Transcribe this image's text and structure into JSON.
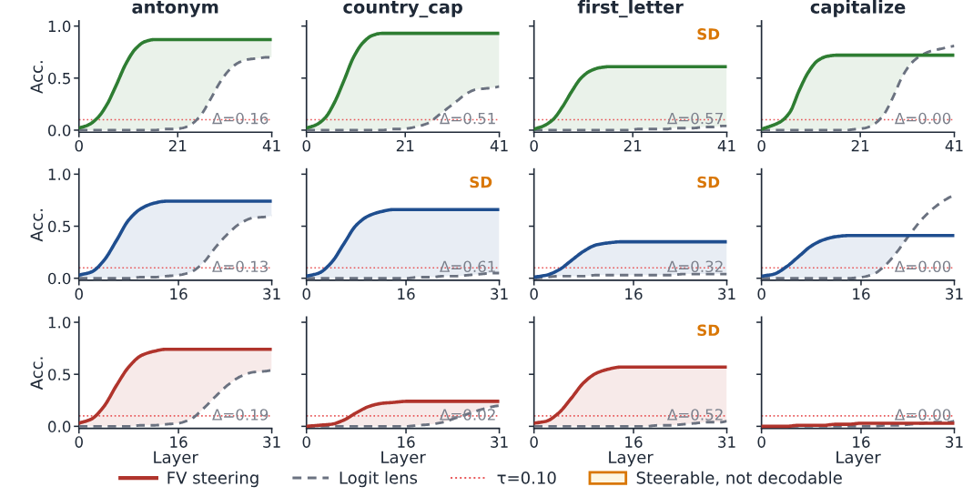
{
  "chart_data": [
    {
      "type": "line",
      "title": "antonym",
      "ylabel": "Acc.",
      "x": [
        0,
        2,
        4,
        6,
        8,
        10,
        12,
        14,
        16,
        18,
        20,
        22,
        24,
        26,
        28,
        30,
        32,
        34,
        36,
        38,
        40,
        41
      ],
      "series": [
        {
          "color": "#2e7d32",
          "line_style": "solid",
          "values": [
            0.02,
            0.05,
            0.12,
            0.25,
            0.44,
            0.64,
            0.78,
            0.85,
            0.87,
            0.87,
            0.87,
            0.87,
            0.87,
            0.87,
            0.87,
            0.87,
            0.87,
            0.87,
            0.87,
            0.87,
            0.87,
            0.87
          ],
          "lower": [
            0,
            0,
            0,
            0,
            0,
            0,
            0,
            0,
            0,
            0.01,
            0.01,
            0.02,
            0.06,
            0.15,
            0.3,
            0.46,
            0.58,
            0.65,
            0.68,
            0.69,
            0.7,
            0.7
          ],
          "upper": [
            0.02,
            0.05,
            0.12,
            0.25,
            0.44,
            0.64,
            0.78,
            0.85,
            0.87,
            0.87,
            0.87,
            0.87,
            0.87,
            0.87,
            0.87,
            0.87,
            0.87,
            0.87,
            0.87,
            0.87,
            0.87,
            0.87
          ]
        },
        {
          "color": "#6b7280",
          "line_style": "dashed",
          "values": [
            0,
            0,
            0,
            0,
            0,
            0,
            0,
            0,
            0,
            0.01,
            0.01,
            0.02,
            0.06,
            0.15,
            0.3,
            0.46,
            0.58,
            0.65,
            0.68,
            0.69,
            0.7,
            0.7
          ]
        }
      ],
      "xlim": [
        0,
        41
      ],
      "xticks": [
        0,
        21,
        41
      ],
      "ylim": [
        -0.02,
        1.05
      ],
      "yticks": [
        {
          "value": 0,
          "label": "0.0"
        },
        {
          "value": 0.5,
          "label": "0.5"
        },
        {
          "value": 1,
          "label": "1.0"
        }
      ],
      "ref_lines": [
        {
          "axis": "y",
          "value": 0.1,
          "color": "#e8585a",
          "line_style": "dotted"
        }
      ],
      "annotations": [
        "Δ=0.16"
      ]
    },
    {
      "type": "line",
      "title": "country_cap",
      "x": [
        0,
        2,
        4,
        6,
        8,
        10,
        12,
        14,
        16,
        18,
        20,
        22,
        24,
        26,
        28,
        30,
        32,
        34,
        36,
        38,
        40,
        41
      ],
      "series": [
        {
          "color": "#2e7d32",
          "line_style": "solid",
          "values": [
            0.02,
            0.05,
            0.12,
            0.27,
            0.48,
            0.7,
            0.84,
            0.91,
            0.93,
            0.93,
            0.93,
            0.93,
            0.93,
            0.93,
            0.93,
            0.93,
            0.93,
            0.93,
            0.93,
            0.93,
            0.93,
            0.93
          ],
          "lower": [
            0,
            0,
            0,
            0,
            0,
            0,
            0,
            0,
            0,
            0.01,
            0.01,
            0.02,
            0.04,
            0.07,
            0.14,
            0.21,
            0.28,
            0.35,
            0.39,
            0.4,
            0.41,
            0.42
          ],
          "upper": [
            0.02,
            0.05,
            0.12,
            0.27,
            0.48,
            0.7,
            0.84,
            0.91,
            0.93,
            0.93,
            0.93,
            0.93,
            0.93,
            0.93,
            0.93,
            0.93,
            0.93,
            0.93,
            0.93,
            0.93,
            0.93,
            0.93
          ]
        },
        {
          "color": "#6b7280",
          "line_style": "dashed",
          "values": [
            0,
            0,
            0,
            0,
            0,
            0,
            0,
            0,
            0,
            0.01,
            0.01,
            0.02,
            0.04,
            0.07,
            0.14,
            0.21,
            0.28,
            0.35,
            0.39,
            0.4,
            0.41,
            0.42
          ]
        }
      ],
      "xlim": [
        0,
        41
      ],
      "xticks": [
        0,
        21,
        41
      ],
      "ylim": [
        -0.02,
        1.05
      ],
      "yticks": [
        0,
        0.5,
        1
      ],
      "tick_labels": "x",
      "ref_lines": [
        {
          "axis": "y",
          "value": 0.1,
          "color": "#e8585a",
          "line_style": "dotted"
        }
      ],
      "annotations": [
        "Δ=0.51"
      ]
    },
    {
      "type": "line",
      "title": "first_letter",
      "x": [
        0,
        2,
        4,
        6,
        8,
        10,
        12,
        14,
        16,
        18,
        20,
        22,
        24,
        26,
        28,
        30,
        32,
        34,
        36,
        38,
        40,
        41
      ],
      "series": [
        {
          "color": "#2e7d32",
          "line_style": "solid",
          "values": [
            0.01,
            0.04,
            0.1,
            0.22,
            0.37,
            0.5,
            0.57,
            0.6,
            0.61,
            0.61,
            0.61,
            0.61,
            0.61,
            0.61,
            0.61,
            0.61,
            0.61,
            0.61,
            0.61,
            0.61,
            0.61,
            0.61
          ],
          "lower": [
            0,
            0,
            0,
            0,
            0,
            0,
            0,
            0,
            0,
            0,
            0,
            0.01,
            0.01,
            0.01,
            0.01,
            0.02,
            0.02,
            0.02,
            0.03,
            0.03,
            0.04,
            0.04
          ],
          "upper": [
            0.01,
            0.04,
            0.1,
            0.22,
            0.37,
            0.5,
            0.57,
            0.6,
            0.61,
            0.61,
            0.61,
            0.61,
            0.61,
            0.61,
            0.61,
            0.61,
            0.61,
            0.61,
            0.61,
            0.61,
            0.61,
            0.61
          ]
        },
        {
          "color": "#6b7280",
          "line_style": "dashed",
          "values": [
            0,
            0,
            0,
            0,
            0,
            0,
            0,
            0,
            0,
            0,
            0,
            0.01,
            0.01,
            0.01,
            0.01,
            0.02,
            0.02,
            0.02,
            0.03,
            0.03,
            0.04,
            0.04
          ]
        }
      ],
      "xlim": [
        0,
        41
      ],
      "xticks": [
        0,
        21,
        41
      ],
      "ylim": [
        -0.02,
        1.05
      ],
      "yticks": [
        0,
        0.5,
        1
      ],
      "tick_labels": "x",
      "ref_lines": [
        {
          "axis": "y",
          "value": 0.1,
          "color": "#e8585a",
          "line_style": "dotted"
        }
      ],
      "annotations": [
        "Δ=0.57",
        "SD"
      ]
    },
    {
      "type": "line",
      "title": "capitalize",
      "x": [
        0,
        2,
        4,
        6,
        8,
        10,
        12,
        14,
        16,
        18,
        20,
        22,
        24,
        26,
        28,
        30,
        32,
        34,
        36,
        38,
        40,
        41
      ],
      "series": [
        {
          "color": "#2e7d32",
          "line_style": "solid",
          "values": [
            0.01,
            0.04,
            0.08,
            0.17,
            0.38,
            0.56,
            0.67,
            0.71,
            0.72,
            0.72,
            0.72,
            0.72,
            0.72,
            0.72,
            0.72,
            0.72,
            0.72,
            0.72,
            0.72,
            0.72,
            0.72,
            0.72
          ],
          "lower": [
            0,
            0,
            0,
            0,
            0,
            0,
            0,
            0,
            0,
            0,
            0.01,
            0.02,
            0.06,
            0.15,
            0.32,
            0.52,
            0.65,
            0.72,
            null,
            null,
            null,
            null
          ],
          "upper": [
            0.01,
            0.04,
            0.08,
            0.17,
            0.38,
            0.56,
            0.67,
            0.71,
            0.72,
            0.72,
            0.72,
            0.72,
            0.72,
            0.72,
            0.72,
            0.72,
            0.72,
            0.72,
            null,
            null,
            null,
            null
          ]
        },
        {
          "color": "#6b7280",
          "line_style": "dashed",
          "values": [
            0,
            0,
            0,
            0,
            0,
            0,
            0,
            0,
            0,
            0,
            0.01,
            0.02,
            0.06,
            0.15,
            0.32,
            0.52,
            0.65,
            0.72,
            0.76,
            0.78,
            0.8,
            0.81
          ]
        }
      ],
      "xlim": [
        0,
        41
      ],
      "xticks": [
        0,
        21,
        41
      ],
      "ylim": [
        -0.02,
        1.05
      ],
      "yticks": [
        0,
        0.5,
        1
      ],
      "tick_labels": "x",
      "ref_lines": [
        {
          "axis": "y",
          "value": 0.1,
          "color": "#e8585a",
          "line_style": "dotted"
        }
      ],
      "annotations": [
        "Δ=0.00"
      ]
    },
    {
      "type": "line",
      "ylabel": "Acc.",
      "x": [
        0,
        2,
        4,
        6,
        8,
        10,
        12,
        14,
        16,
        18,
        20,
        22,
        24,
        26,
        28,
        30,
        31
      ],
      "series": [
        {
          "color": "#1f4e8f",
          "line_style": "solid",
          "values": [
            0.03,
            0.06,
            0.17,
            0.36,
            0.56,
            0.67,
            0.72,
            0.74,
            0.74,
            0.74,
            0.74,
            0.74,
            0.74,
            0.74,
            0.74,
            0.74,
            0.74
          ],
          "lower": [
            0,
            0,
            0,
            0,
            0,
            0.01,
            0.01,
            0.02,
            0.03,
            0.06,
            0.15,
            0.3,
            0.43,
            0.53,
            0.58,
            0.59,
            0.6
          ],
          "upper": [
            0.03,
            0.06,
            0.17,
            0.36,
            0.56,
            0.67,
            0.72,
            0.74,
            0.74,
            0.74,
            0.74,
            0.74,
            0.74,
            0.74,
            0.74,
            0.74,
            0.74
          ]
        },
        {
          "color": "#6b7280",
          "line_style": "dashed",
          "values": [
            0,
            0,
            0,
            0,
            0,
            0.01,
            0.01,
            0.02,
            0.03,
            0.06,
            0.15,
            0.3,
            0.43,
            0.53,
            0.58,
            0.59,
            0.6
          ]
        }
      ],
      "xlim": [
        0,
        31
      ],
      "xticks": [
        0,
        16,
        31
      ],
      "ylim": [
        -0.02,
        1.05
      ],
      "yticks": [
        {
          "value": 0,
          "label": "0.0"
        },
        {
          "value": 0.5,
          "label": "0.5"
        },
        {
          "value": 1,
          "label": "1.0"
        }
      ],
      "ref_lines": [
        {
          "axis": "y",
          "value": 0.1,
          "color": "#e8585a",
          "line_style": "dotted"
        }
      ],
      "annotations": [
        "Δ=0.13"
      ]
    },
    {
      "type": "line",
      "x": [
        0,
        2,
        4,
        6,
        8,
        10,
        12,
        14,
        16,
        18,
        20,
        22,
        24,
        26,
        28,
        30,
        31
      ],
      "series": [
        {
          "color": "#1f4e8f",
          "line_style": "solid",
          "values": [
            0.02,
            0.05,
            0.15,
            0.33,
            0.51,
            0.6,
            0.64,
            0.66,
            0.66,
            0.66,
            0.66,
            0.66,
            0.66,
            0.66,
            0.66,
            0.66,
            0.66
          ],
          "lower": [
            0,
            0,
            0,
            0,
            0,
            0,
            0,
            0,
            0,
            0.01,
            0.01,
            0.02,
            0.02,
            0.03,
            0.04,
            0.05,
            0.05
          ],
          "upper": [
            0.02,
            0.05,
            0.15,
            0.33,
            0.51,
            0.6,
            0.64,
            0.66,
            0.66,
            0.66,
            0.66,
            0.66,
            0.66,
            0.66,
            0.66,
            0.66,
            0.66
          ]
        },
        {
          "color": "#6b7280",
          "line_style": "dashed",
          "values": [
            0,
            0,
            0,
            0,
            0,
            0,
            0,
            0,
            0,
            0.01,
            0.01,
            0.02,
            0.02,
            0.03,
            0.04,
            0.05,
            0.05
          ]
        }
      ],
      "xlim": [
        0,
        31
      ],
      "xticks": [
        0,
        16,
        31
      ],
      "ylim": [
        -0.02,
        1.05
      ],
      "yticks": [
        0,
        0.5,
        1
      ],
      "tick_labels": "x",
      "ref_lines": [
        {
          "axis": "y",
          "value": 0.1,
          "color": "#e8585a",
          "line_style": "dotted"
        }
      ],
      "annotations": [
        "Δ=0.61",
        "SD"
      ]
    },
    {
      "type": "line",
      "x": [
        0,
        2,
        4,
        6,
        8,
        10,
        12,
        14,
        16,
        18,
        20,
        22,
        24,
        26,
        28,
        30,
        31
      ],
      "series": [
        {
          "color": "#1f4e8f",
          "line_style": "solid",
          "values": [
            0.01,
            0.03,
            0.08,
            0.17,
            0.26,
            0.32,
            0.34,
            0.35,
            0.35,
            0.35,
            0.35,
            0.35,
            0.35,
            0.35,
            0.35,
            0.35,
            0.35
          ],
          "lower": [
            0,
            0.01,
            0.02,
            0.02,
            0.02,
            0.03,
            0.03,
            0.03,
            0.03,
            0.03,
            0.03,
            0.03,
            0.04,
            0.04,
            0.04,
            0.04,
            0.04
          ],
          "upper": [
            0.01,
            0.03,
            0.08,
            0.17,
            0.26,
            0.32,
            0.34,
            0.35,
            0.35,
            0.35,
            0.35,
            0.35,
            0.35,
            0.35,
            0.35,
            0.35,
            0.35
          ]
        },
        {
          "color": "#6b7280",
          "line_style": "dashed",
          "values": [
            0,
            0.01,
            0.02,
            0.02,
            0.02,
            0.03,
            0.03,
            0.03,
            0.03,
            0.03,
            0.03,
            0.03,
            0.04,
            0.04,
            0.04,
            0.04,
            0.04
          ]
        }
      ],
      "xlim": [
        0,
        31
      ],
      "xticks": [
        0,
        16,
        31
      ],
      "ylim": [
        -0.02,
        1.05
      ],
      "yticks": [
        0,
        0.5,
        1
      ],
      "tick_labels": "x",
      "ref_lines": [
        {
          "axis": "y",
          "value": 0.1,
          "color": "#e8585a",
          "line_style": "dotted"
        }
      ],
      "annotations": [
        "Δ=0.32",
        "SD"
      ]
    },
    {
      "type": "line",
      "x": [
        0,
        2,
        4,
        6,
        8,
        10,
        12,
        14,
        16,
        18,
        20,
        22,
        23.7,
        26,
        28,
        30,
        31
      ],
      "series": [
        {
          "color": "#1f4e8f",
          "line_style": "solid",
          "values": [
            0.02,
            0.04,
            0.11,
            0.21,
            0.31,
            0.37,
            0.4,
            0.41,
            0.41,
            0.41,
            0.41,
            0.41,
            0.41,
            0.41,
            0.41,
            0.41,
            0.41
          ],
          "lower": [
            0,
            0,
            0,
            0,
            0,
            0,
            0,
            0,
            0.01,
            0.04,
            0.13,
            0.27,
            0.41,
            null,
            null,
            null,
            null
          ],
          "upper": [
            0.02,
            0.04,
            0.11,
            0.21,
            0.31,
            0.37,
            0.4,
            0.41,
            0.41,
            0.41,
            0.41,
            0.41,
            0.41,
            null,
            null,
            null,
            null
          ]
        },
        {
          "color": "#6b7280",
          "line_style": "dashed",
          "values": [
            0,
            0,
            0,
            0,
            0,
            0,
            0,
            0,
            0.01,
            0.04,
            0.13,
            0.27,
            0.41,
            0.58,
            0.69,
            0.77,
            0.8
          ]
        }
      ],
      "xlim": [
        0,
        31
      ],
      "xticks": [
        0,
        16,
        31
      ],
      "ylim": [
        -0.02,
        1.05
      ],
      "yticks": [
        0,
        0.5,
        1
      ],
      "tick_labels": "x",
      "ref_lines": [
        {
          "axis": "y",
          "value": 0.1,
          "color": "#e8585a",
          "line_style": "dotted"
        }
      ],
      "annotations": [
        "Δ=0.00"
      ]
    },
    {
      "type": "line",
      "ylabel": "Acc.",
      "xlabel": "Layer",
      "x": [
        0,
        2,
        4,
        6,
        8,
        10,
        12,
        14,
        16,
        18,
        20,
        22,
        24,
        26,
        28,
        30,
        31
      ],
      "series": [
        {
          "color": "#b0342c",
          "line_style": "solid",
          "values": [
            0.03,
            0.07,
            0.19,
            0.39,
            0.57,
            0.68,
            0.72,
            0.74,
            0.74,
            0.74,
            0.74,
            0.74,
            0.74,
            0.74,
            0.74,
            0.74,
            0.74
          ],
          "lower": [
            0,
            0,
            0,
            0,
            0,
            0.01,
            0.01,
            0.02,
            0.03,
            0.07,
            0.17,
            0.29,
            0.4,
            0.48,
            0.52,
            0.53,
            0.54
          ],
          "upper": [
            0.03,
            0.07,
            0.19,
            0.39,
            0.57,
            0.68,
            0.72,
            0.74,
            0.74,
            0.74,
            0.74,
            0.74,
            0.74,
            0.74,
            0.74,
            0.74,
            0.74
          ]
        },
        {
          "color": "#6b7280",
          "line_style": "dashed",
          "values": [
            0,
            0,
            0,
            0,
            0,
            0.01,
            0.01,
            0.02,
            0.03,
            0.07,
            0.17,
            0.29,
            0.4,
            0.48,
            0.52,
            0.53,
            0.54
          ]
        }
      ],
      "xlim": [
        0,
        31
      ],
      "xticks": [
        0,
        16,
        31
      ],
      "ylim": [
        -0.02,
        1.05
      ],
      "yticks": [
        {
          "value": 0,
          "label": "0.0"
        },
        {
          "value": 0.5,
          "label": "0.5"
        },
        {
          "value": 1,
          "label": "1.0"
        }
      ],
      "ref_lines": [
        {
          "axis": "y",
          "value": 0.1,
          "color": "#e8585a",
          "line_style": "dotted"
        }
      ],
      "annotations": [
        "Δ=0.19"
      ]
    },
    {
      "type": "line",
      "xlabel": "Layer",
      "x": [
        0,
        2,
        4,
        6,
        8,
        10,
        12,
        14,
        16,
        18,
        20,
        22,
        24,
        26,
        28,
        30,
        31
      ],
      "series": [
        {
          "color": "#b0342c",
          "line_style": "solid",
          "values": [
            0,
            0.01,
            0.02,
            0.06,
            0.13,
            0.19,
            0.22,
            0.23,
            0.24,
            0.24,
            0.24,
            0.24,
            0.24,
            0.24,
            0.24,
            0.24,
            0.24
          ],
          "lower": [
            0,
            0,
            0,
            0,
            0,
            0,
            0,
            0,
            0,
            0.01,
            0.02,
            0.04,
            0.08,
            0.12,
            0.16,
            0.19,
            0.2
          ],
          "upper": [
            0,
            0.01,
            0.02,
            0.06,
            0.13,
            0.19,
            0.22,
            0.23,
            0.24,
            0.24,
            0.24,
            0.24,
            0.24,
            0.24,
            0.24,
            0.24,
            0.24
          ]
        },
        {
          "color": "#6b7280",
          "line_style": "dashed",
          "values": [
            0,
            0,
            0,
            0,
            0,
            0,
            0,
            0,
            0,
            0.01,
            0.02,
            0.04,
            0.08,
            0.12,
            0.16,
            0.19,
            0.2
          ]
        }
      ],
      "xlim": [
        0,
        31
      ],
      "xticks": [
        0,
        16,
        31
      ],
      "ylim": [
        -0.02,
        1.05
      ],
      "yticks": [
        0,
        0.5,
        1
      ],
      "tick_labels": "x",
      "ref_lines": [
        {
          "axis": "y",
          "value": 0.1,
          "color": "#e8585a",
          "line_style": "dotted"
        }
      ],
      "annotations": [
        "Δ=0.02"
      ]
    },
    {
      "type": "line",
      "xlabel": "Layer",
      "x": [
        0,
        2,
        4,
        6,
        8,
        10,
        12,
        14,
        16,
        18,
        20,
        22,
        24,
        26,
        28,
        30,
        31
      ],
      "series": [
        {
          "color": "#b0342c",
          "line_style": "solid",
          "values": [
            0.03,
            0.05,
            0.13,
            0.27,
            0.42,
            0.51,
            0.55,
            0.57,
            0.57,
            0.57,
            0.57,
            0.57,
            0.57,
            0.57,
            0.57,
            0.57,
            0.57
          ],
          "lower": [
            0,
            0,
            0,
            0,
            0,
            0,
            0,
            0,
            0,
            0,
            0.01,
            0.01,
            0.02,
            0.03,
            0.04,
            0.04,
            0.05
          ],
          "upper": [
            0.03,
            0.05,
            0.13,
            0.27,
            0.42,
            0.51,
            0.55,
            0.57,
            0.57,
            0.57,
            0.57,
            0.57,
            0.57,
            0.57,
            0.57,
            0.57,
            0.57
          ]
        },
        {
          "color": "#6b7280",
          "line_style": "dashed",
          "values": [
            0,
            0,
            0,
            0,
            0,
            0,
            0,
            0,
            0,
            0,
            0.01,
            0.01,
            0.02,
            0.03,
            0.04,
            0.04,
            0.05
          ]
        }
      ],
      "xlim": [
        0,
        31
      ],
      "xticks": [
        0,
        16,
        31
      ],
      "ylim": [
        -0.02,
        1.05
      ],
      "yticks": [
        0,
        0.5,
        1
      ],
      "tick_labels": "x",
      "ref_lines": [
        {
          "axis": "y",
          "value": 0.1,
          "color": "#e8585a",
          "line_style": "dotted"
        }
      ],
      "annotations": [
        "Δ=0.52",
        "SD"
      ]
    },
    {
      "type": "line",
      "xlabel": "Layer",
      "x": [
        0,
        2,
        4,
        6,
        8,
        10,
        12,
        14,
        16,
        18,
        20,
        22,
        24,
        26,
        28,
        30,
        31
      ],
      "series": [
        {
          "name": "FV steering",
          "color": "#b0342c",
          "line_style": "solid",
          "values": [
            0,
            0,
            0,
            0.01,
            0.01,
            0.01,
            0.02,
            0.02,
            0.03,
            0.03,
            0.03,
            0.03,
            0.03,
            0.03,
            0.03,
            0.03,
            0.03
          ],
          "lower": [
            0,
            0,
            0,
            0,
            0,
            0,
            0,
            0,
            0,
            0,
            0.01,
            0.01,
            0.02,
            0.03,
            null,
            null,
            null
          ],
          "upper": [
            0,
            0,
            0,
            0.01,
            0.01,
            0.01,
            0.02,
            0.02,
            0.03,
            0.03,
            0.03,
            0.03,
            0.03,
            0.03,
            null,
            null,
            null
          ]
        },
        {
          "name": "Logit lens",
          "color": "#6b7280",
          "line_style": "dashed",
          "values": [
            0,
            0,
            0,
            0,
            0,
            0,
            0,
            0,
            0,
            0,
            0.01,
            0.01,
            0.02,
            0.03,
            0.04,
            0.04,
            0.05
          ]
        }
      ],
      "xlim": [
        0,
        31
      ],
      "xticks": [
        0,
        16,
        31
      ],
      "ylim": [
        -0.02,
        1.05
      ],
      "yticks": [
        0,
        0.5,
        1
      ],
      "tick_labels": "x",
      "ref_lines": [
        {
          "axis": "y",
          "value": 0.1,
          "label": "τ=0.10",
          "color": "#e8585a",
          "line_style": "dotted"
        }
      ],
      "annotations": [
        "Δ=0.00",
        "Steerable, not decodable"
      ],
      "legend": "bottom"
    }
  ]
}
